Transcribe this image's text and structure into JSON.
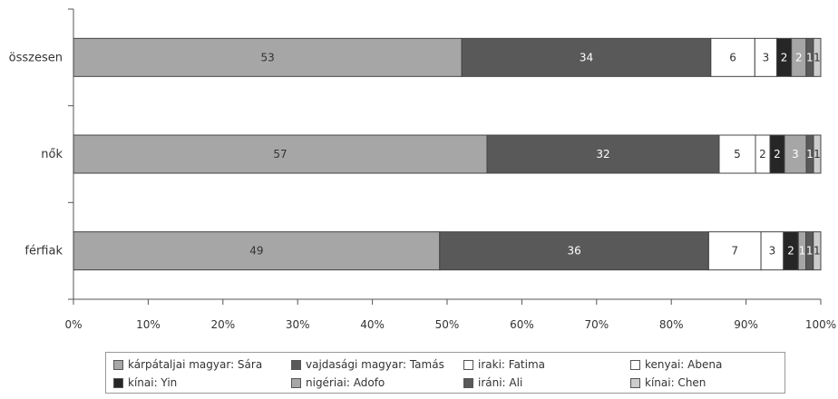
{
  "chart_data": {
    "type": "bar",
    "orientation": "horizontal",
    "stacked": true,
    "percent_stacked": true,
    "categories": [
      "összesen",
      "nők",
      "férfiak"
    ],
    "series": [
      {
        "name": "kárpátaljai magyar: Sára",
        "values": [
          53,
          57,
          49
        ],
        "color": "#a6a6a6",
        "label_color": "#333333"
      },
      {
        "name": "vajdasági magyar: Tamás",
        "values": [
          34,
          32,
          36
        ],
        "color": "#595959",
        "label_color": "#ffffff"
      },
      {
        "name": "iraki: Fatima",
        "values": [
          6,
          5,
          7
        ],
        "color": "#ffffff",
        "label_color": "#333333"
      },
      {
        "name": "kenyai: Abena",
        "values": [
          3,
          2,
          3
        ],
        "color": "#ffffff",
        "label_color": "#333333"
      },
      {
        "name": "kínai: Yin",
        "values": [
          2,
          2,
          2
        ],
        "color": "#262626",
        "label_color": "#ffffff"
      },
      {
        "name": "nigériai: Adofo",
        "values": [
          2,
          3,
          1
        ],
        "color": "#a6a6a6",
        "label_color": "#ffffff"
      },
      {
        "name": "iráni: Ali",
        "values": [
          1,
          1,
          1
        ],
        "color": "#595959",
        "label_color": "#ffffff"
      },
      {
        "name": "kínai: Chen",
        "values": [
          1,
          1,
          1
        ],
        "color": "#cccccc",
        "label_color": "#333333"
      }
    ],
    "xticks": [
      "0%",
      "10%",
      "20%",
      "30%",
      "40%",
      "50%",
      "60%",
      "70%",
      "80%",
      "90%",
      "100%"
    ],
    "xlim": [
      0,
      100
    ],
    "grid": false,
    "legend_position": "bottom"
  }
}
